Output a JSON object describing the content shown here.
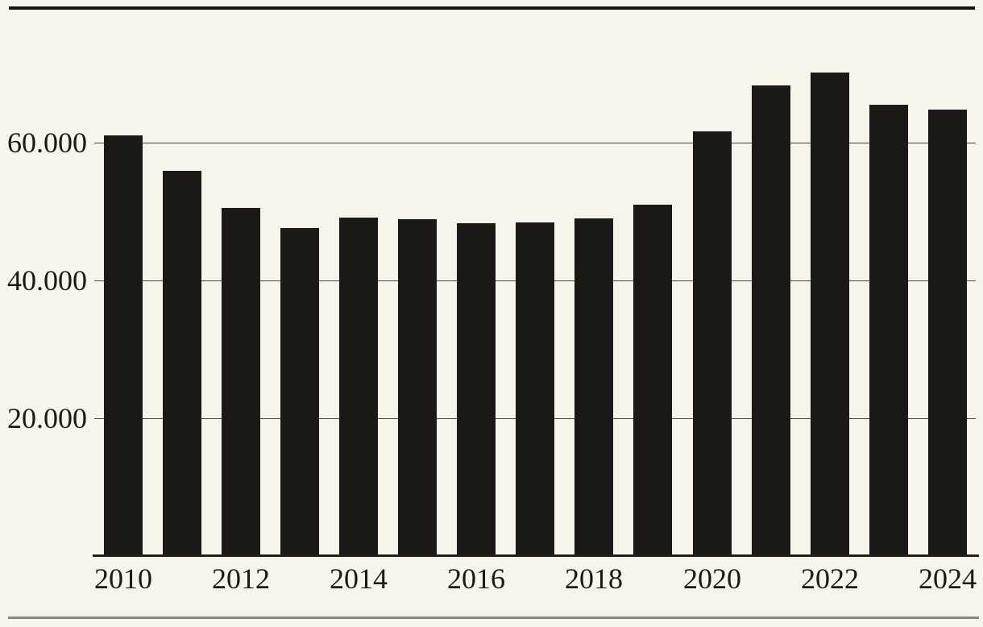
{
  "page": {
    "background_color": "#f8f4ec",
    "text_color": "#1c1a16",
    "top_rule_color": "#15130e",
    "bottom_rule_color": "#8a8781",
    "gridline_color": "#46433d",
    "axis_color": "#23211c"
  },
  "chart_data": {
    "type": "bar",
    "title": "",
    "xlabel": "",
    "ylabel": "",
    "categories": [
      "2010",
      "2011",
      "2012",
      "2013",
      "2014",
      "2015",
      "2016",
      "2017",
      "2018",
      "2019",
      "2020",
      "2021",
      "2022",
      "2023",
      "2024"
    ],
    "values": [
      61000,
      55900,
      50500,
      47600,
      49100,
      48900,
      48300,
      48400,
      49000,
      51000,
      61600,
      68300,
      70200,
      65500,
      64800
    ],
    "bar_color": "#1b1915",
    "ylim": [
      0,
      72000
    ],
    "yticks": [
      20000,
      40000,
      60000
    ],
    "ytick_labels": [
      "20.000",
      "40.000",
      "60.000"
    ],
    "xticks": [
      "2010",
      "2012",
      "2014",
      "2016",
      "2018",
      "2020",
      "2022",
      "2024"
    ],
    "grid": true,
    "legend": false
  }
}
